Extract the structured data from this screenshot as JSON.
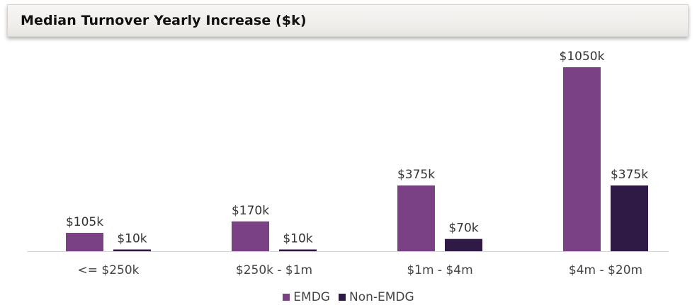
{
  "chart_data": {
    "type": "bar",
    "title": "Median Turnover Yearly Increase ($k)",
    "categories": [
      "<= $250k",
      "$250k - $1m",
      "$1m - $4m",
      "$4m - $20m"
    ],
    "series": [
      {
        "name": "EMDG",
        "color": "#7b4185",
        "values": [
          105,
          170,
          375,
          1050
        ],
        "labels": [
          "$105k",
          "$170k",
          "$375k",
          "$1050k"
        ]
      },
      {
        "name": "Non-EMDG",
        "color": "#2e1a45",
        "values": [
          10,
          10,
          70,
          375
        ],
        "labels": [
          "$10k",
          "$10k",
          "$70k",
          "$375k"
        ]
      }
    ],
    "xlabel": "",
    "ylabel": "",
    "ylim": [
      0,
      1050
    ],
    "grid": false,
    "legend_position": "bottom"
  }
}
